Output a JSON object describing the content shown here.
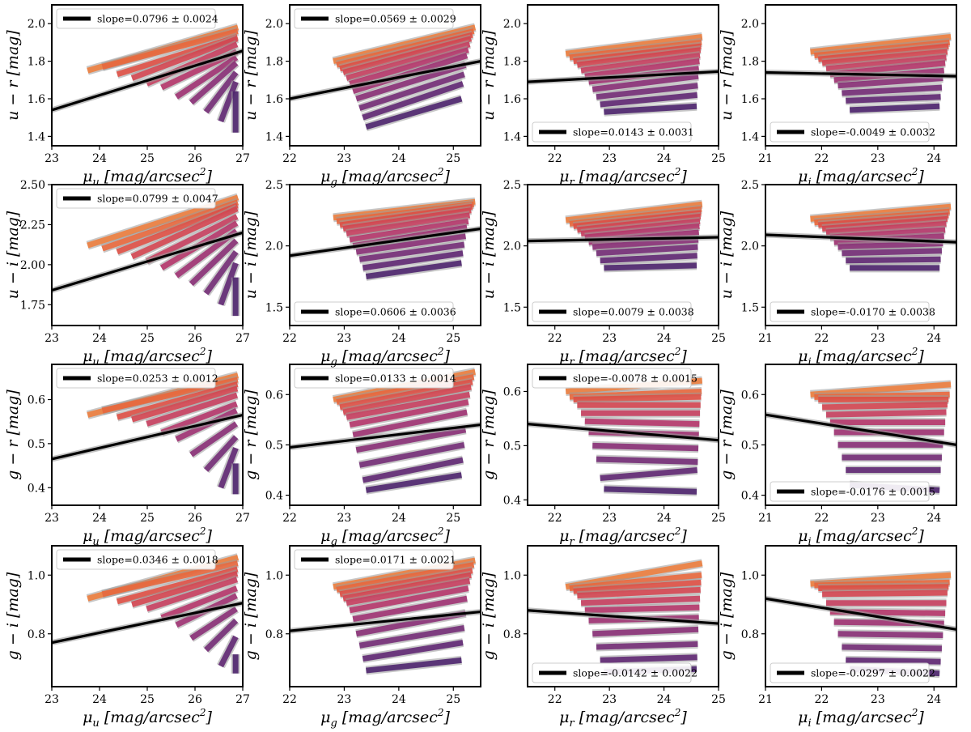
{
  "chart_data": {
    "type": "line",
    "layout": {
      "rows": 4,
      "cols": 4
    },
    "colors": {
      "fit": "#000000",
      "band": "#9a9a9a",
      "palette": [
        "#f07a36",
        "#ec6436",
        "#e24a3e",
        "#d63f4b",
        "#c8385a",
        "#b52f66",
        "#9d2a6e",
        "#862772",
        "#702472",
        "#5a1f6e",
        "#471b68"
      ]
    },
    "x_axes": [
      {
        "label": "μu [mag/arcsec2]",
        "xlim": [
          23,
          27
        ],
        "ticks": [
          23,
          24,
          25,
          26,
          27
        ],
        "seg_start": [
          23.75,
          26.85
        ]
      },
      {
        "label": "μg [mag/arcsec2]",
        "xlim": [
          22,
          25.5
        ],
        "ticks": [
          22,
          23,
          24,
          25
        ],
        "seg_start": [
          22.8,
          23.4
        ],
        "seg_end": [
          25.15,
          25.4
        ]
      },
      {
        "label": "μr [mag/arcsec2]",
        "xlim": [
          21.5,
          25
        ],
        "ticks": [
          22,
          23,
          24,
          25
        ],
        "seg_start": [
          22.2,
          22.9
        ],
        "seg_end": [
          24.6,
          24.7
        ]
      },
      {
        "label": "μi [mag/arcsec2]",
        "xlim": [
          21,
          24.4
        ],
        "ticks": [
          21,
          22,
          23,
          24
        ],
        "seg_start": [
          21.8,
          22.5
        ],
        "seg_end": [
          24.1,
          24.3
        ]
      }
    ],
    "panels": [
      {
        "ylabel": "u − r [mag]",
        "ylim": [
          1.35,
          2.1
        ],
        "yticks": [
          1.4,
          1.6,
          1.8,
          2.0
        ],
        "legend": "slope=0.0796 ± 0.0024",
        "legend_pos": "top",
        "fit": [
          1.54,
          1.855
        ],
        "lines": [
          {
            "y0": 1.75,
            "y1": 1.98
          },
          {
            "y0": 1.77,
            "y1": 1.96
          },
          {
            "y0": 1.73,
            "y1": 1.93
          },
          {
            "y0": 1.71,
            "y1": 1.92
          },
          {
            "y0": 1.68,
            "y1": 1.89
          },
          {
            "y0": 1.66,
            "y1": 1.85
          },
          {
            "y0": 1.61,
            "y1": 1.82
          },
          {
            "y0": 1.58,
            "y1": 1.79
          },
          {
            "y0": 1.53,
            "y1": 1.74
          },
          {
            "y0": 1.48,
            "y1": 1.69
          },
          {
            "y0": 1.42,
            "y1": 1.64
          }
        ]
      },
      {
        "ylabel": "u − r [mag]",
        "ylim": [
          1.35,
          2.1
        ],
        "yticks": [
          1.4,
          1.6,
          1.8,
          2.0
        ],
        "legend": "slope=0.0569 ± 0.0029",
        "legend_pos": "top",
        "fit": [
          1.6,
          1.8
        ],
        "lines": [
          {
            "y0": 1.8,
            "y1": 1.98
          },
          {
            "y0": 1.78,
            "y1": 1.96
          },
          {
            "y0": 1.76,
            "y1": 1.94
          },
          {
            "y0": 1.74,
            "y1": 1.92
          },
          {
            "y0": 1.71,
            "y1": 1.89
          },
          {
            "y0": 1.68,
            "y1": 1.86
          },
          {
            "y0": 1.64,
            "y1": 1.83
          },
          {
            "y0": 1.6,
            "y1": 1.78
          },
          {
            "y0": 1.55,
            "y1": 1.73
          },
          {
            "y0": 1.5,
            "y1": 1.68
          },
          {
            "y0": 1.45,
            "y1": 1.6
          }
        ]
      },
      {
        "ylabel": "u − r [mag]",
        "ylim": [
          1.35,
          2.1
        ],
        "yticks": [
          1.4,
          1.6,
          1.8,
          2.0
        ],
        "legend": "slope=0.0143 ± 0.0031",
        "legend_pos": "bottom",
        "fit": [
          1.69,
          1.745
        ],
        "lines": [
          {
            "y0": 1.84,
            "y1": 1.93
          },
          {
            "y0": 1.82,
            "y1": 1.9
          },
          {
            "y0": 1.8,
            "y1": 1.88
          },
          {
            "y0": 1.78,
            "y1": 1.86
          },
          {
            "y0": 1.75,
            "y1": 1.83
          },
          {
            "y0": 1.72,
            "y1": 1.8
          },
          {
            "y0": 1.69,
            "y1": 1.76
          },
          {
            "y0": 1.65,
            "y1": 1.72
          },
          {
            "y0": 1.61,
            "y1": 1.67
          },
          {
            "y0": 1.57,
            "y1": 1.62
          },
          {
            "y0": 1.53,
            "y1": 1.56
          }
        ]
      },
      {
        "ylabel": "u − r [mag]",
        "ylim": [
          1.35,
          2.1
        ],
        "yticks": [
          1.4,
          1.6,
          1.8,
          2.0
        ],
        "legend": "slope=-0.0049 ± 0.0032",
        "legend_pos": "bottom",
        "fit": [
          1.74,
          1.72
        ],
        "lines": [
          {
            "y0": 1.85,
            "y1": 1.93
          },
          {
            "y0": 1.83,
            "y1": 1.9
          },
          {
            "y0": 1.81,
            "y1": 1.88
          },
          {
            "y0": 1.79,
            "y1": 1.85
          },
          {
            "y0": 1.76,
            "y1": 1.82
          },
          {
            "y0": 1.73,
            "y1": 1.79
          },
          {
            "y0": 1.7,
            "y1": 1.75
          },
          {
            "y0": 1.67,
            "y1": 1.71
          },
          {
            "y0": 1.63,
            "y1": 1.66
          },
          {
            "y0": 1.59,
            "y1": 1.61
          },
          {
            "y0": 1.54,
            "y1": 1.56
          }
        ]
      },
      {
        "ylabel": "u − i [mag]",
        "ylim": [
          1.62,
          2.5
        ],
        "yticks": [
          1.75,
          2.0,
          2.25,
          2.5
        ],
        "legend": "slope=0.0799 ± 0.0047",
        "legend_pos": "top",
        "fit": [
          1.84,
          2.2
        ],
        "lines": [
          {
            "y0": 2.12,
            "y1": 2.42
          },
          {
            "y0": 2.1,
            "y1": 2.39
          },
          {
            "y0": 2.08,
            "y1": 2.37
          },
          {
            "y0": 2.05,
            "y1": 2.35
          },
          {
            "y0": 2.02,
            "y1": 2.3
          },
          {
            "y0": 1.98,
            "y1": 2.26
          },
          {
            "y0": 1.93,
            "y1": 2.21
          },
          {
            "y0": 1.88,
            "y1": 2.15
          },
          {
            "y0": 1.82,
            "y1": 2.08
          },
          {
            "y0": 1.75,
            "y1": 2.01
          },
          {
            "y0": 1.68,
            "y1": 1.92
          }
        ]
      },
      {
        "ylabel": "u − i [mag]",
        "ylim": [
          1.35,
          2.5
        ],
        "yticks": [
          1.5,
          2.0,
          2.5
        ],
        "legend": "slope=0.0606 ± 0.0036",
        "legend_pos": "bottom",
        "fit": [
          1.92,
          2.14
        ],
        "lines": [
          {
            "y0": 2.23,
            "y1": 2.36
          },
          {
            "y0": 2.2,
            "y1": 2.34
          },
          {
            "y0": 2.17,
            "y1": 2.32
          },
          {
            "y0": 2.14,
            "y1": 2.29
          },
          {
            "y0": 2.1,
            "y1": 2.25
          },
          {
            "y0": 2.05,
            "y1": 2.2
          },
          {
            "y0": 2.0,
            "y1": 2.15
          },
          {
            "y0": 1.95,
            "y1": 2.08
          },
          {
            "y0": 1.89,
            "y1": 2.01
          },
          {
            "y0": 1.82,
            "y1": 1.94
          },
          {
            "y0": 1.75,
            "y1": 1.86
          }
        ]
      },
      {
        "ylabel": "u − i [mag]",
        "ylim": [
          1.35,
          2.5
        ],
        "yticks": [
          1.5,
          2.0,
          2.5
        ],
        "legend": "slope=0.0079 ± 0.0038",
        "legend_pos": "bottom",
        "fit": [
          2.04,
          2.07
        ],
        "lines": [
          {
            "y0": 2.21,
            "y1": 2.34
          },
          {
            "y0": 2.18,
            "y1": 2.3
          },
          {
            "y0": 2.16,
            "y1": 2.27
          },
          {
            "y0": 2.13,
            "y1": 2.24
          },
          {
            "y0": 2.1,
            "y1": 2.2
          },
          {
            "y0": 2.07,
            "y1": 2.16
          },
          {
            "y0": 2.03,
            "y1": 2.11
          },
          {
            "y0": 1.99,
            "y1": 2.05
          },
          {
            "y0": 1.94,
            "y1": 1.99
          },
          {
            "y0": 1.88,
            "y1": 1.92
          },
          {
            "y0": 1.82,
            "y1": 1.84
          }
        ]
      },
      {
        "ylabel": "u − i [mag]",
        "ylim": [
          1.35,
          2.5
        ],
        "yticks": [
          1.5,
          2.0,
          2.5
        ],
        "legend": "slope=-0.0170 ± 0.0038",
        "legend_pos": "bottom",
        "fit": [
          2.09,
          2.03
        ],
        "lines": [
          {
            "y0": 2.22,
            "y1": 2.32
          },
          {
            "y0": 2.19,
            "y1": 2.28
          },
          {
            "y0": 2.17,
            "y1": 2.25
          },
          {
            "y0": 2.14,
            "y1": 2.22
          },
          {
            "y0": 2.11,
            "y1": 2.18
          },
          {
            "y0": 2.07,
            "y1": 2.13
          },
          {
            "y0": 2.03,
            "y1": 2.08
          },
          {
            "y0": 1.99,
            "y1": 2.02
          },
          {
            "y0": 1.94,
            "y1": 1.96
          },
          {
            "y0": 1.88,
            "y1": 1.89
          },
          {
            "y0": 1.82,
            "y1": 1.82
          }
        ]
      },
      {
        "ylabel": "g − r [mag]",
        "ylim": [
          0.36,
          0.68
        ],
        "yticks": [
          0.4,
          0.5,
          0.6
        ],
        "legend": "slope=0.0253 ± 0.0012",
        "legend_pos": "top",
        "fit": [
          0.465,
          0.565
        ],
        "lines": [
          {
            "y0": 0.565,
            "y1": 0.655
          },
          {
            "y0": 0.575,
            "y1": 0.645
          },
          {
            "y0": 0.56,
            "y1": 0.635
          },
          {
            "y0": 0.555,
            "y1": 0.625
          },
          {
            "y0": 0.545,
            "y1": 0.61
          },
          {
            "y0": 0.525,
            "y1": 0.59
          },
          {
            "y0": 0.51,
            "y1": 0.575
          },
          {
            "y0": 0.475,
            "y1": 0.545
          },
          {
            "y0": 0.44,
            "y1": 0.515
          },
          {
            "y0": 0.4,
            "y1": 0.49
          },
          {
            "y0": 0.385,
            "y1": 0.455
          }
        ]
      },
      {
        "ylabel": "g − r [mag]",
        "ylim": [
          0.38,
          0.66
        ],
        "yticks": [
          0.4,
          0.5,
          0.6
        ],
        "legend": "slope=0.0133 ± 0.0014",
        "legend_pos": "top",
        "fit": [
          0.495,
          0.54
        ],
        "lines": [
          {
            "y0": 0.59,
            "y1": 0.645
          },
          {
            "y0": 0.585,
            "y1": 0.635
          },
          {
            "y0": 0.575,
            "y1": 0.625
          },
          {
            "y0": 0.565,
            "y1": 0.615
          },
          {
            "y0": 0.555,
            "y1": 0.6
          },
          {
            "y0": 0.54,
            "y1": 0.585
          },
          {
            "y0": 0.52,
            "y1": 0.565
          },
          {
            "y0": 0.49,
            "y1": 0.53
          },
          {
            "y0": 0.46,
            "y1": 0.5
          },
          {
            "y0": 0.43,
            "y1": 0.47
          },
          {
            "y0": 0.41,
            "y1": 0.44
          }
        ]
      },
      {
        "ylabel": "g − r [mag]",
        "ylim": [
          0.39,
          0.65
        ],
        "yticks": [
          0.4,
          0.5,
          0.6
        ],
        "legend": "slope=-0.0078 ± 0.0015",
        "legend_pos": "top",
        "fit": [
          0.54,
          0.51
        ],
        "lines": [
          {
            "y0": 0.6,
            "y1": 0.62
          },
          {
            "y0": 0.59,
            "y1": 0.6
          },
          {
            "y0": 0.585,
            "y1": 0.59
          },
          {
            "y0": 0.575,
            "y1": 0.575
          },
          {
            "y0": 0.56,
            "y1": 0.56
          },
          {
            "y0": 0.545,
            "y1": 0.54
          },
          {
            "y0": 0.525,
            "y1": 0.52
          },
          {
            "y0": 0.5,
            "y1": 0.495
          },
          {
            "y0": 0.475,
            "y1": 0.47
          },
          {
            "y0": 0.44,
            "y1": 0.455
          },
          {
            "y0": 0.42,
            "y1": 0.415
          }
        ]
      },
      {
        "ylabel": "g − r [mag]",
        "ylim": [
          0.38,
          0.66
        ],
        "yticks": [
          0.4,
          0.5,
          0.6
        ],
        "legend": "slope=-0.0176 ± 0.0015",
        "legend_pos": "bottom",
        "fit": [
          0.56,
          0.5
        ],
        "lines": [
          {
            "y0": 0.6,
            "y1": 0.62
          },
          {
            "y0": 0.595,
            "y1": 0.6
          },
          {
            "y0": 0.59,
            "y1": 0.59
          },
          {
            "y0": 0.575,
            "y1": 0.58
          },
          {
            "y0": 0.56,
            "y1": 0.565
          },
          {
            "y0": 0.545,
            "y1": 0.545
          },
          {
            "y0": 0.525,
            "y1": 0.525
          },
          {
            "y0": 0.5,
            "y1": 0.5
          },
          {
            "y0": 0.475,
            "y1": 0.475
          },
          {
            "y0": 0.45,
            "y1": 0.45
          },
          {
            "y0": 0.42,
            "y1": 0.41
          }
        ]
      },
      {
        "ylabel": "g − i [mag]",
        "ylim": [
          0.62,
          1.1
        ],
        "yticks": [
          0.8,
          1.0
        ],
        "legend": "slope=0.0346 ± 0.0018",
        "legend_pos": "top",
        "fit": [
          0.77,
          0.905
        ],
        "lines": [
          {
            "y0": 0.92,
            "y1": 1.06
          },
          {
            "y0": 0.935,
            "y1": 1.04
          },
          {
            "y0": 0.91,
            "y1": 1.02
          },
          {
            "y0": 0.9,
            "y1": 1.005
          },
          {
            "y0": 0.885,
            "y1": 0.985
          },
          {
            "y0": 0.855,
            "y1": 0.955
          },
          {
            "y0": 0.83,
            "y1": 0.93
          },
          {
            "y0": 0.785,
            "y1": 0.885
          },
          {
            "y0": 0.745,
            "y1": 0.845
          },
          {
            "y0": 0.69,
            "y1": 0.79
          },
          {
            "y0": 0.665,
            "y1": 0.73
          }
        ]
      },
      {
        "ylabel": "g − i [mag]",
        "ylim": [
          0.62,
          1.1
        ],
        "yticks": [
          0.8,
          1.0
        ],
        "legend": "slope=0.0171 ± 0.0021",
        "legend_pos": "top",
        "fit": [
          0.81,
          0.875
        ],
        "lines": [
          {
            "y0": 0.96,
            "y1": 1.05
          },
          {
            "y0": 0.95,
            "y1": 1.035
          },
          {
            "y0": 0.935,
            "y1": 1.015
          },
          {
            "y0": 0.92,
            "y1": 1.0
          },
          {
            "y0": 0.905,
            "y1": 0.98
          },
          {
            "y0": 0.88,
            "y1": 0.955
          },
          {
            "y0": 0.85,
            "y1": 0.92
          },
          {
            "y0": 0.8,
            "y1": 0.87
          },
          {
            "y0": 0.76,
            "y1": 0.82
          },
          {
            "y0": 0.715,
            "y1": 0.77
          },
          {
            "y0": 0.675,
            "y1": 0.71
          }
        ]
      },
      {
        "ylabel": "g − i [mag]",
        "ylim": [
          0.62,
          1.1
        ],
        "yticks": [
          0.8,
          1.0
        ],
        "legend": "slope=-0.0142 ± 0.0022",
        "legend_pos": "bottom",
        "fit": [
          0.88,
          0.835
        ],
        "lines": [
          {
            "y0": 0.96,
            "y1": 1.04
          },
          {
            "y0": 0.955,
            "y1": 1.0
          },
          {
            "y0": 0.945,
            "y1": 0.975
          },
          {
            "y0": 0.93,
            "y1": 0.95
          },
          {
            "y0": 0.905,
            "y1": 0.92
          },
          {
            "y0": 0.88,
            "y1": 0.89
          },
          {
            "y0": 0.845,
            "y1": 0.855
          },
          {
            "y0": 0.8,
            "y1": 0.815
          },
          {
            "y0": 0.755,
            "y1": 0.765
          },
          {
            "y0": 0.71,
            "y1": 0.72
          },
          {
            "y0": 0.67,
            "y1": 0.68
          }
        ]
      },
      {
        "ylabel": "g − i [mag]",
        "ylim": [
          0.62,
          1.1
        ],
        "yticks": [
          0.8,
          1.0
        ],
        "legend": "slope=-0.0297 ± 0.0022",
        "legend_pos": "bottom",
        "fit": [
          0.92,
          0.815
        ],
        "lines": [
          {
            "y0": 0.97,
            "y1": 1.0
          },
          {
            "y0": 0.965,
            "y1": 0.975
          },
          {
            "y0": 0.955,
            "y1": 0.96
          },
          {
            "y0": 0.935,
            "y1": 0.94
          },
          {
            "y0": 0.905,
            "y1": 0.905
          },
          {
            "y0": 0.875,
            "y1": 0.87
          },
          {
            "y0": 0.84,
            "y1": 0.835
          },
          {
            "y0": 0.8,
            "y1": 0.795
          },
          {
            "y0": 0.755,
            "y1": 0.75
          },
          {
            "y0": 0.71,
            "y1": 0.705
          },
          {
            "y0": 0.68,
            "y1": 0.665
          }
        ]
      }
    ]
  }
}
